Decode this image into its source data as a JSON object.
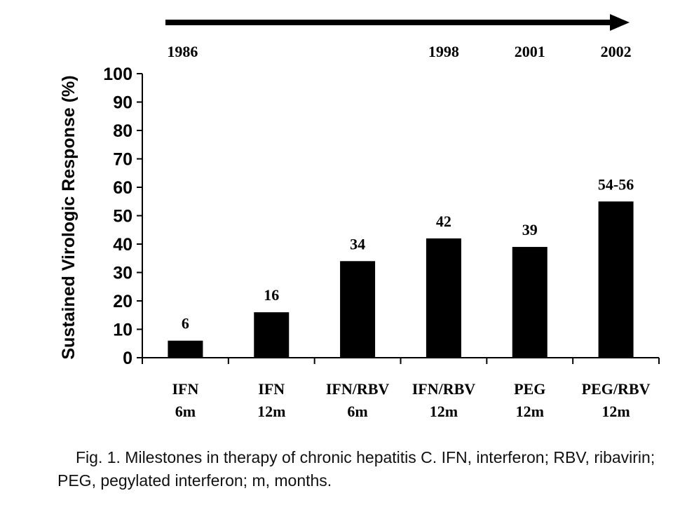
{
  "chart_data": {
    "type": "bar",
    "categories": [
      [
        "IFN",
        "6m"
      ],
      [
        "IFN",
        "12m"
      ],
      [
        "IFN/RBV",
        "6m"
      ],
      [
        "IFN/RBV",
        "12m"
      ],
      [
        "PEG",
        "12m"
      ],
      [
        "PEG/RBV",
        "12m"
      ]
    ],
    "values": [
      6,
      16,
      34,
      42,
      39,
      55
    ],
    "data_labels": [
      "6",
      "16",
      "34",
      "42",
      "39",
      "54-56"
    ],
    "ylabel": "Sustained Virologic Response (%)",
    "ylim": [
      0,
      100
    ],
    "yticks": [
      0,
      10,
      20,
      30,
      40,
      50,
      60,
      70,
      80,
      90,
      100
    ],
    "grid": false,
    "timeline": {
      "arrow": true,
      "years": [
        {
          "label": "1986",
          "category_index": 0
        },
        {
          "label": "1998",
          "category_index": 3
        },
        {
          "label": "2001",
          "category_index": 4
        },
        {
          "label": "2002",
          "category_index": 5
        }
      ]
    },
    "bar_color": "#000000"
  },
  "caption": "Fig. 1.  Milestones in therapy of chronic hepatitis C. IFN, interferon; RBV, ribavirin; PEG, pegylated interferon; m, months."
}
